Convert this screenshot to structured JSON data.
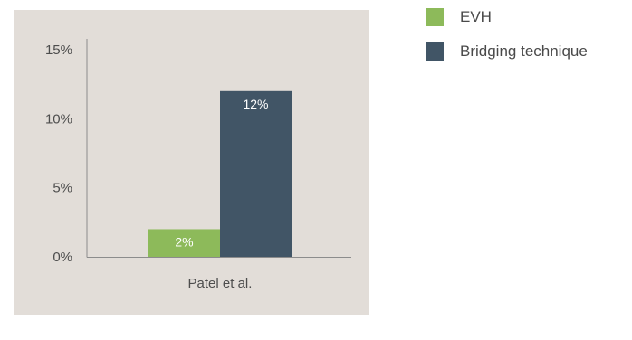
{
  "chart_data": {
    "type": "bar",
    "categories": [
      "Patel et al."
    ],
    "series": [
      {
        "name": "EVH",
        "values": [
          2
        ],
        "labels": [
          "2%"
        ],
        "color": "#8dba5a"
      },
      {
        "name": "Bridging technique",
        "values": [
          12
        ],
        "labels": [
          "12%"
        ],
        "color": "#415566"
      }
    ],
    "title": "",
    "xlabel": "",
    "ylabel": "",
    "ylim": [
      0,
      15
    ],
    "yticks": [
      0,
      5,
      10,
      15
    ],
    "ytick_labels": [
      "0%",
      "5%",
      "10%",
      "15%"
    ],
    "grid": false,
    "legend_position": "top-right",
    "background_color": "#e2ddd8",
    "axis_color": "#8c8c8c"
  }
}
